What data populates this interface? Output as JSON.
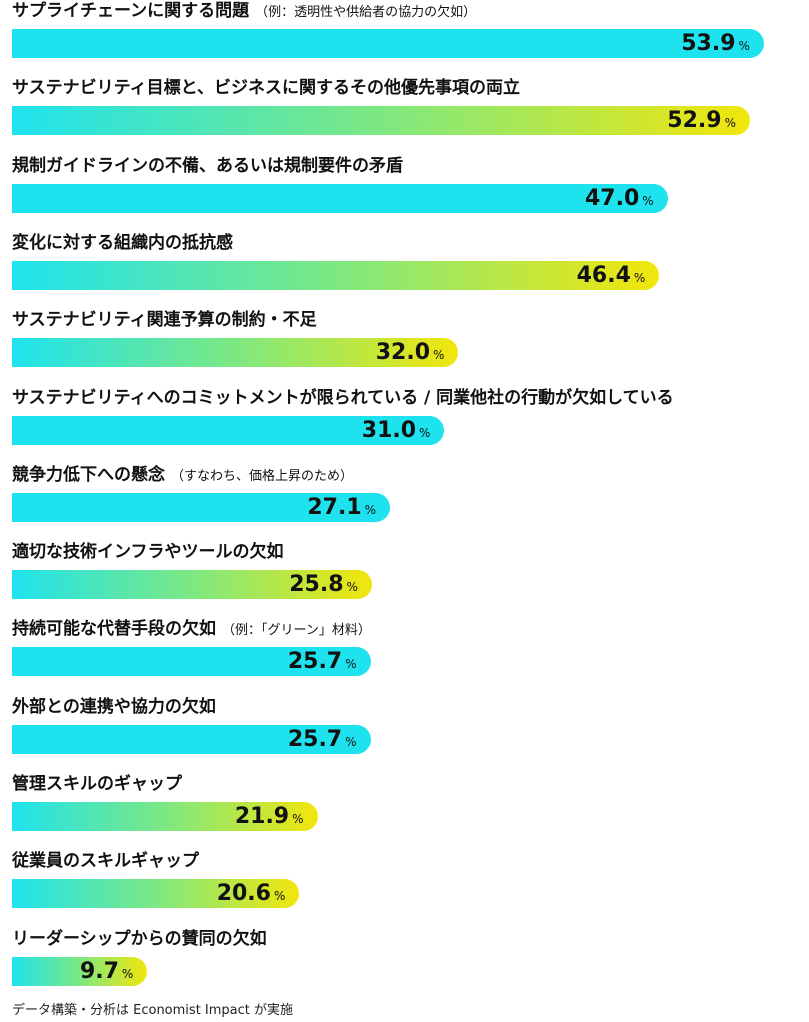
{
  "chart_data": {
    "type": "bar",
    "orientation": "horizontal",
    "categories": [
      {
        "label": "サプライチェーンに関する問題",
        "note": "（例：透明性や供給者の協力の欠如）"
      },
      {
        "label": "サステナビリティ目標と、ビジネスに関するその他優先事項の両立",
        "note": ""
      },
      {
        "label": "規制ガイドラインの不備、あるいは規制要件の矛盾",
        "note": ""
      },
      {
        "label": "変化に対する組織内の抵抗感",
        "note": ""
      },
      {
        "label": "サステナビリティ関連予算の制約・不足",
        "note": ""
      },
      {
        "label": "サステナビリティへのコミットメントが限られている / 同業他社の行動が欠如している",
        "note": ""
      },
      {
        "label": "競争力低下への懸念",
        "note": "（すなわち、価格上昇のため）"
      },
      {
        "label": "適切な技術インフラやツールの欠如",
        "note": ""
      },
      {
        "label": "持続可能な代替手段の欠如",
        "note": "（例：「グリーン」材料）"
      },
      {
        "label": "外部との連携や協力の欠如",
        "note": ""
      },
      {
        "label": "管理スキルのギャップ",
        "note": ""
      },
      {
        "label": "従業員のスキルギャップ",
        "note": ""
      },
      {
        "label": "リーダーシップからの賛同の欠如",
        "note": ""
      }
    ],
    "values": [
      53.9,
      52.9,
      47.0,
      46.4,
      32.0,
      31.0,
      27.1,
      25.8,
      25.7,
      25.7,
      21.9,
      20.6,
      9.7
    ],
    "value_labels": [
      "53.9",
      "52.9",
      "47.0",
      "46.4",
      "32.0",
      "31.0",
      "27.1",
      "25.8",
      "25.7",
      "25.7",
      "21.9",
      "20.6",
      "9.7"
    ],
    "bar_style": [
      "cyan",
      "gradient",
      "cyan",
      "gradient",
      "gradient",
      "cyan",
      "cyan",
      "gradient",
      "cyan",
      "cyan",
      "gradient",
      "gradient",
      "gradient"
    ],
    "unit": "%",
    "colors": {
      "cyan": "#1ee3ee",
      "green": "#7de882",
      "yellow": "#f2e60c"
    }
  },
  "source": "データ構築・分析は Economist Impact が実施"
}
